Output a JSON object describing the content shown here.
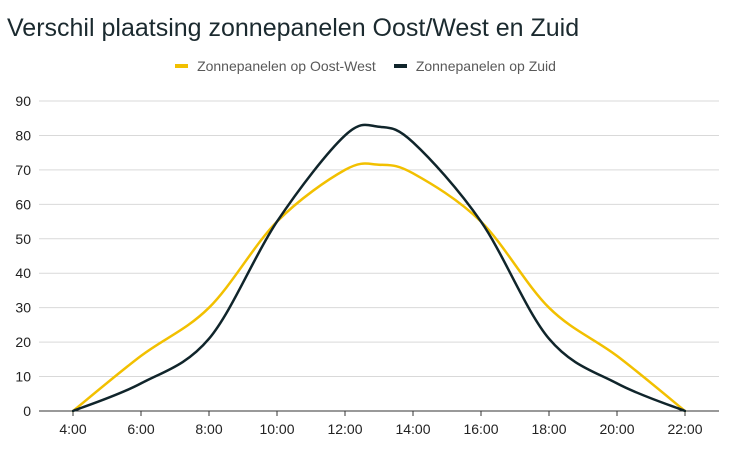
{
  "chart_data": {
    "type": "line",
    "title": "Verschil plaatsing zonnepanelen Oost/West en Zuid",
    "xlabel": "",
    "ylabel": "",
    "categories": [
      "4:00",
      "6:00",
      "8:00",
      "10:00",
      "12:00",
      "14:00",
      "16:00",
      "18:00",
      "20:00",
      "22:00"
    ],
    "x_hours": [
      4,
      6,
      8,
      10,
      12,
      14,
      16,
      18,
      20,
      22
    ],
    "ylim": [
      0,
      90
    ],
    "yticks": [
      0,
      10,
      20,
      30,
      40,
      50,
      60,
      70,
      80,
      90
    ],
    "grid": true,
    "legend_position": "top-center",
    "smooth": true,
    "series": [
      {
        "name": "Zonnepanelen op Oost-West",
        "color": "#f2c000",
        "x": [
          4,
          6,
          8,
          10,
          12,
          13,
          14,
          16,
          18,
          20,
          22
        ],
        "y": [
          0,
          16,
          30,
          55,
          70,
          71.5,
          69,
          55,
          30,
          16,
          0
        ]
      },
      {
        "name": "Zonnepanelen op Zuid",
        "color": "#10252b",
        "x": [
          4,
          6,
          8,
          10,
          12,
          13,
          14,
          16,
          18,
          20,
          22
        ],
        "y": [
          0,
          8,
          21,
          55,
          80,
          82.5,
          78,
          55,
          21,
          8,
          0
        ]
      }
    ]
  }
}
